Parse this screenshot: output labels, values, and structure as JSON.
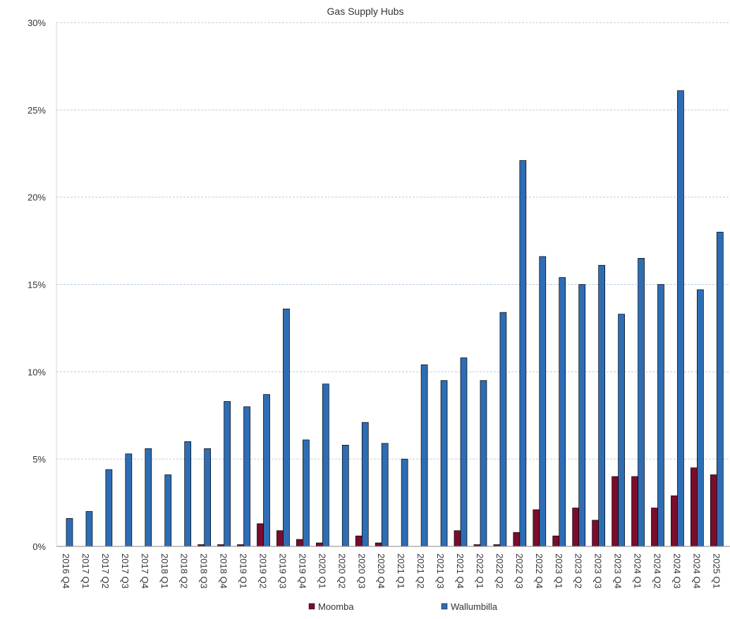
{
  "chart_data": {
    "type": "bar",
    "title": "Gas Supply Hubs",
    "xlabel": "",
    "ylabel": "",
    "ylim": [
      0,
      30
    ],
    "y_ticks": [
      "0%",
      "5%",
      "10%",
      "15%",
      "20%",
      "25%",
      "30%"
    ],
    "y_tick_values": [
      0,
      5,
      10,
      15,
      20,
      25,
      30
    ],
    "grid": true,
    "legend_position": "bottom",
    "categories": [
      "2016 Q4",
      "2017 Q1",
      "2017 Q2",
      "2017 Q3",
      "2017 Q4",
      "2018 Q1",
      "2018 Q2",
      "2018 Q3",
      "2018 Q4",
      "2019 Q1",
      "2019 Q2",
      "2019 Q3",
      "2019 Q4",
      "2020 Q1",
      "2020 Q2",
      "2020 Q3",
      "2020 Q4",
      "2021 Q1",
      "2021 Q2",
      "2021 Q3",
      "2021 Q4",
      "2022 Q1",
      "2022 Q2",
      "2022 Q3",
      "2022 Q4",
      "2023 Q1",
      "2023 Q2",
      "2023 Q3",
      "2023 Q4",
      "2024 Q1",
      "2024 Q2",
      "2024 Q3",
      "2024 Q4",
      "2025 Q1"
    ],
    "series": [
      {
        "name": "Moomba",
        "color": "#7b0c2c",
        "values": [
          0,
          0,
          0,
          0,
          0,
          0,
          0,
          0.1,
          0.1,
          0.1,
          1.3,
          0.9,
          0.4,
          0.2,
          0,
          0.6,
          0.2,
          0,
          0,
          0,
          0.9,
          0.1,
          0.1,
          0.8,
          2.1,
          0.6,
          2.2,
          1.5,
          4.0,
          4.0,
          2.2,
          2.9,
          4.5,
          4.1
        ]
      },
      {
        "name": "Wallumbilla",
        "color": "#2e6db4",
        "values": [
          1.6,
          2.0,
          4.4,
          5.3,
          5.6,
          4.1,
          6.0,
          5.6,
          8.3,
          8.0,
          8.7,
          13.6,
          6.1,
          9.3,
          5.8,
          7.1,
          5.9,
          5.0,
          10.4,
          9.5,
          10.8,
          9.5,
          13.4,
          22.1,
          16.6,
          15.4,
          15.0,
          16.1,
          13.3,
          16.5,
          15.0,
          26.1,
          14.7,
          18.0
        ]
      }
    ]
  }
}
